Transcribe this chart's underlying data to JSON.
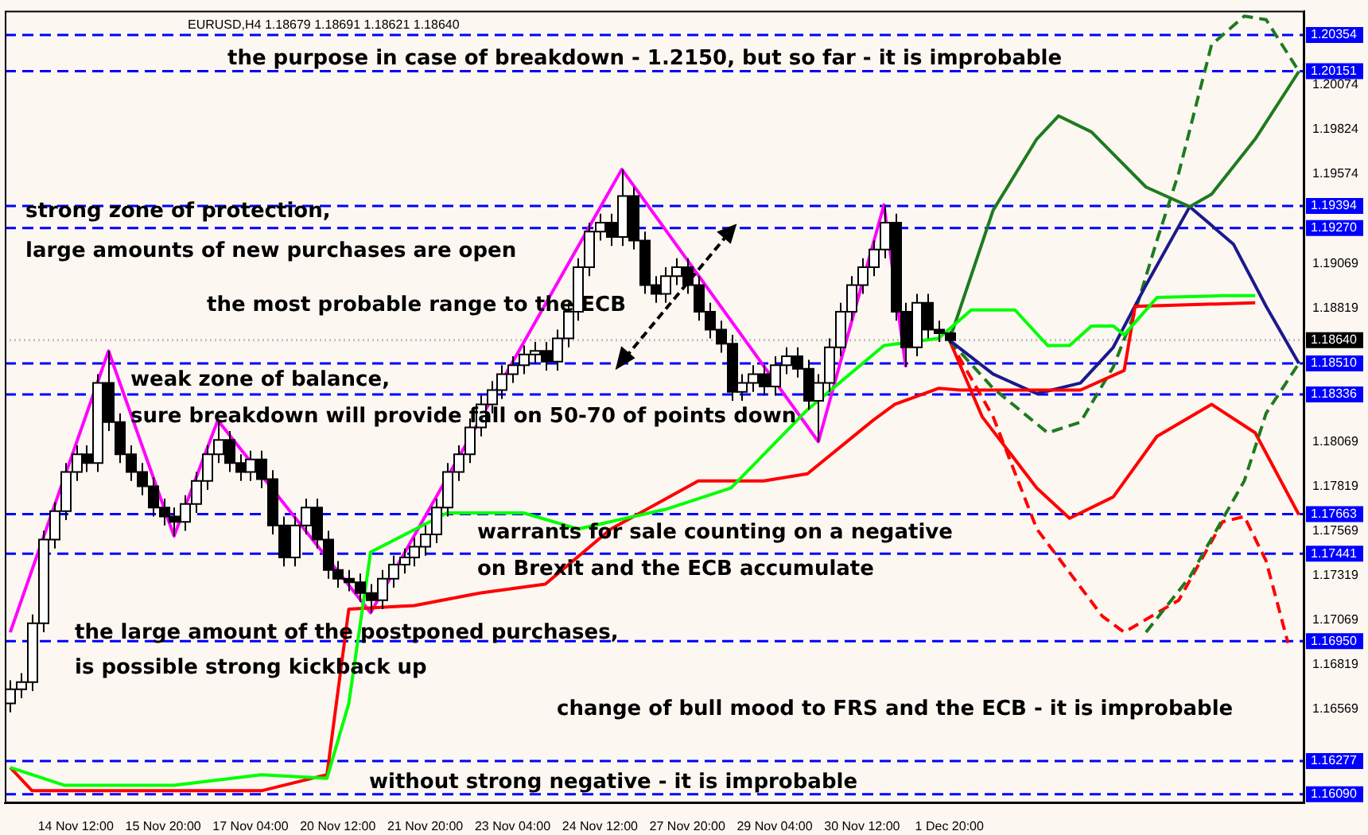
{
  "chart_data": {
    "type": "candlestick",
    "title": "EURUSD,H4 1.18679 1.18691 1.18621 1.18640",
    "categories": [
      null,
      null,
      null,
      null,
      null,
      null,
      "14 Nov 12:00",
      null,
      null,
      null,
      null,
      null,
      null,
      null,
      "15 Nov 20:00",
      null,
      null,
      null,
      null,
      null,
      null,
      null,
      "17 Nov 04:00",
      null,
      null,
      null,
      null,
      null,
      null,
      null,
      "20 Nov 12:00",
      null,
      null,
      null,
      null,
      null,
      null,
      null,
      "21 Nov 20:00",
      null,
      null,
      null,
      null,
      null,
      null,
      null,
      "23 Nov 04:00",
      null,
      null,
      null,
      null,
      null,
      null,
      null,
      "24 Nov 12:00",
      null,
      null,
      null,
      null,
      null,
      null,
      null,
      "27 Nov 20:00",
      null,
      null,
      null,
      null,
      null,
      null,
      null,
      "29 Nov 04:00",
      null,
      null,
      null,
      null,
      null,
      null,
      null,
      "30 Nov 12:00",
      null,
      null,
      null,
      null,
      null,
      null,
      null,
      "1 Dec 20:00",
      null,
      null,
      null,
      null,
      null,
      null,
      null,
      null,
      null,
      null,
      null,
      null,
      null,
      null,
      null,
      null,
      null,
      null,
      null,
      null,
      null,
      null,
      null,
      null,
      null,
      null,
      null,
      null,
      null,
      null,
      null,
      null
    ],
    "ohlc": [
      [
        1.166,
        1.1673,
        1.1655,
        1.1668
      ],
      [
        1.1668,
        1.1677,
        1.1663,
        1.1672
      ],
      [
        1.1672,
        1.171,
        1.1667,
        1.1705
      ],
      [
        1.1705,
        1.1757,
        1.17,
        1.1752
      ],
      [
        1.1752,
        1.1773,
        1.1747,
        1.1768
      ],
      [
        1.1768,
        1.1795,
        1.1763,
        1.179
      ],
      [
        1.179,
        1.1805,
        1.1785,
        1.18
      ],
      [
        1.18,
        1.1805,
        1.179,
        1.1795
      ],
      [
        1.1795,
        1.1845,
        1.179,
        1.184
      ],
      [
        1.184,
        1.1858,
        1.1813,
        1.1818
      ],
      [
        1.1818,
        1.1823,
        1.1795,
        1.18
      ],
      [
        1.18,
        1.1805,
        1.1785,
        1.179
      ],
      [
        1.179,
        1.1795,
        1.1777,
        1.1782
      ],
      [
        1.1782,
        1.1787,
        1.1765,
        1.177
      ],
      [
        1.177,
        1.1775,
        1.176,
        1.1765
      ],
      [
        1.1765,
        1.177,
        1.1754,
        1.1762
      ],
      [
        1.1762,
        1.1777,
        1.1757,
        1.1772
      ],
      [
        1.1772,
        1.179,
        1.1767,
        1.1785
      ],
      [
        1.1785,
        1.1805,
        1.178,
        1.18
      ],
      [
        1.18,
        1.1819,
        1.1795,
        1.1808
      ],
      [
        1.1808,
        1.1813,
        1.179,
        1.1795
      ],
      [
        1.1795,
        1.18,
        1.1785,
        1.179
      ],
      [
        1.179,
        1.1802,
        1.1785,
        1.1797
      ],
      [
        1.1797,
        1.1802,
        1.1781,
        1.1786
      ],
      [
        1.1786,
        1.1791,
        1.1755,
        1.176
      ],
      [
        1.176,
        1.1765,
        1.1737,
        1.1742
      ],
      [
        1.1742,
        1.1765,
        1.1737,
        1.176
      ],
      [
        1.176,
        1.1775,
        1.1755,
        1.177
      ],
      [
        1.177,
        1.1775,
        1.1747,
        1.1752
      ],
      [
        1.1752,
        1.1757,
        1.173,
        1.1735
      ],
      [
        1.1735,
        1.174,
        1.1725,
        1.173
      ],
      [
        1.173,
        1.1735,
        1.1723,
        1.1728
      ],
      [
        1.1728,
        1.1733,
        1.1717,
        1.1722
      ],
      [
        1.1722,
        1.1727,
        1.1711,
        1.1718
      ],
      [
        1.1718,
        1.1735,
        1.1713,
        1.173
      ],
      [
        1.173,
        1.1743,
        1.1725,
        1.1738
      ],
      [
        1.1738,
        1.1747,
        1.1733,
        1.1742
      ],
      [
        1.1742,
        1.1753,
        1.1737,
        1.1748
      ],
      [
        1.1748,
        1.176,
        1.1743,
        1.1755
      ],
      [
        1.1755,
        1.1775,
        1.175,
        1.177
      ],
      [
        1.177,
        1.1795,
        1.1765,
        1.179
      ],
      [
        1.179,
        1.1805,
        1.1785,
        1.18
      ],
      [
        1.18,
        1.182,
        1.1795,
        1.1815
      ],
      [
        1.1815,
        1.1833,
        1.181,
        1.1828
      ],
      [
        1.1828,
        1.1841,
        1.1823,
        1.1836
      ],
      [
        1.1836,
        1.185,
        1.1831,
        1.1845
      ],
      [
        1.1845,
        1.1855,
        1.184,
        1.185
      ],
      [
        1.185,
        1.1861,
        1.1845,
        1.1856
      ],
      [
        1.1856,
        1.1863,
        1.1851,
        1.1858
      ],
      [
        1.1858,
        1.1863,
        1.1847,
        1.1852
      ],
      [
        1.1852,
        1.187,
        1.1847,
        1.1865
      ],
      [
        1.1865,
        1.1885,
        1.186,
        1.188
      ],
      [
        1.188,
        1.191,
        1.1875,
        1.1905
      ],
      [
        1.1905,
        1.193,
        1.19,
        1.1925
      ],
      [
        1.1925,
        1.1935,
        1.192,
        1.193
      ],
      [
        1.193,
        1.1935,
        1.1917,
        1.1922
      ],
      [
        1.1922,
        1.196,
        1.1917,
        1.1945
      ],
      [
        1.1945,
        1.195,
        1.1915,
        1.192
      ],
      [
        1.192,
        1.1925,
        1.189,
        1.1895
      ],
      [
        1.1895,
        1.19,
        1.1885,
        1.189
      ],
      [
        1.189,
        1.1905,
        1.1885,
        1.19
      ],
      [
        1.19,
        1.191,
        1.1895,
        1.1905
      ],
      [
        1.1905,
        1.191,
        1.189,
        1.1895
      ],
      [
        1.1895,
        1.19,
        1.1875,
        1.188
      ],
      [
        1.188,
        1.1885,
        1.1865,
        1.187
      ],
      [
        1.187,
        1.1875,
        1.1857,
        1.1862
      ],
      [
        1.1862,
        1.1867,
        1.183,
        1.1835
      ],
      [
        1.1835,
        1.1845,
        1.183,
        1.184
      ],
      [
        1.184,
        1.185,
        1.1835,
        1.1845
      ],
      [
        1.1845,
        1.185,
        1.1833,
        1.1838
      ],
      [
        1.1838,
        1.1855,
        1.1833,
        1.185
      ],
      [
        1.185,
        1.186,
        1.1845,
        1.1855
      ],
      [
        1.1855,
        1.186,
        1.1843,
        1.1848
      ],
      [
        1.1848,
        1.1853,
        1.1825,
        1.183
      ],
      [
        1.183,
        1.1845,
        1.1807,
        1.184
      ],
      [
        1.184,
        1.1865,
        1.1835,
        1.186
      ],
      [
        1.186,
        1.1885,
        1.1855,
        1.188
      ],
      [
        1.188,
        1.19,
        1.1875,
        1.1895
      ],
      [
        1.1895,
        1.191,
        1.189,
        1.1905
      ],
      [
        1.1905,
        1.192,
        1.19,
        1.1915
      ],
      [
        1.1915,
        1.194,
        1.191,
        1.193
      ],
      [
        1.193,
        1.1935,
        1.1875,
        1.188
      ],
      [
        1.188,
        1.1885,
        1.1849,
        1.186
      ],
      [
        1.186,
        1.189,
        1.1855,
        1.1885
      ],
      [
        1.1885,
        1.189,
        1.1865,
        1.187
      ],
      [
        1.187,
        1.1875,
        1.1863,
        1.1868
      ],
      [
        1.18679,
        1.18691,
        1.18621,
        1.1864
      ],
      null,
      null,
      null,
      null,
      null,
      null,
      null,
      null,
      null,
      null,
      null,
      null,
      null,
      null,
      null,
      null,
      null,
      null,
      null,
      null,
      null,
      null,
      null,
      null,
      null,
      null,
      null,
      null,
      null,
      null,
      null,
      null
    ],
    "series": [
      {
        "type": "line",
        "color": "#00ff00",
        "values": [
          1.1624,
          null,
          null,
          null,
          null,
          1.1614,
          null,
          null,
          null,
          null,
          null,
          null,
          null,
          null,
          null,
          1.1614,
          null,
          null,
          null,
          null,
          null,
          null,
          null,
          1.162,
          null,
          null,
          null,
          null,
          null,
          1.1618,
          null,
          1.166,
          null,
          1.1745,
          null,
          null,
          null,
          null,
          null,
          null,
          1.1767,
          null,
          null,
          null,
          null,
          null,
          null,
          1.1767,
          null,
          null,
          null,
          null,
          1.1758,
          null,
          null,
          null,
          null,
          null,
          null,
          null,
          1.1769,
          null,
          null,
          null,
          null,
          null,
          1.1781,
          null,
          null,
          null,
          null,
          null,
          null,
          1.1825,
          null,
          null,
          null,
          null,
          null,
          null,
          1.1861,
          null,
          null,
          null,
          null,
          1.1865,
          null,
          null,
          1.1881,
          null,
          null,
          null,
          1.1881,
          null,
          null,
          1.1861,
          null,
          1.1861,
          null,
          1.1872,
          null,
          1.1872,
          1.1867,
          null,
          null,
          1.1888,
          null,
          null,
          null,
          null,
          null,
          1.1889,
          null,
          null,
          1.1889,
          null,
          null,
          null,
          null
        ]
      },
      {
        "type": "line",
        "color": "#ff0000",
        "values": [
          1.1624,
          null,
          1.1611,
          null,
          null,
          null,
          null,
          null,
          null,
          null,
          null,
          null,
          null,
          null,
          null,
          null,
          null,
          null,
          null,
          null,
          null,
          null,
          null,
          1.1611,
          null,
          null,
          null,
          null,
          null,
          1.162,
          null,
          1.1713,
          null,
          null,
          null,
          null,
          null,
          1.1715,
          null,
          null,
          null,
          null,
          null,
          1.1722,
          null,
          null,
          null,
          null,
          null,
          1.1727,
          null,
          null,
          null,
          null,
          null,
          1.1758,
          null,
          null,
          null,
          null,
          null,
          null,
          null,
          1.1785,
          null,
          null,
          null,
          null,
          null,
          1.1785,
          null,
          null,
          null,
          1.1789,
          null,
          null,
          null,
          null,
          null,
          1.1819,
          null,
          1.1828,
          null,
          null,
          null,
          1.1837,
          null,
          1.1836,
          null,
          null,
          null,
          null,
          null,
          null,
          null,
          null,
          null,
          null,
          1.1836,
          null,
          null,
          null,
          1.1847,
          1.1883,
          null,
          null,
          null,
          null,
          null,
          null,
          null,
          null,
          null,
          null,
          1.1885,
          null,
          null,
          null,
          null
        ]
      },
      {
        "type": "line",
        "color": "#ff00ff",
        "values": [
          1.17,
          null,
          null,
          null,
          null,
          null,
          null,
          null,
          null,
          1.1858,
          null,
          null,
          null,
          null,
          null,
          1.1754,
          null,
          null,
          null,
          1.1819,
          null,
          null,
          null,
          null,
          null,
          null,
          null,
          null,
          null,
          null,
          null,
          null,
          null,
          1.1711,
          null,
          null,
          null,
          null,
          null,
          null,
          null,
          null,
          null,
          null,
          null,
          null,
          null,
          null,
          null,
          null,
          null,
          null,
          null,
          null,
          null,
          null,
          1.196,
          null,
          null,
          null,
          null,
          null,
          null,
          null,
          null,
          null,
          null,
          null,
          null,
          null,
          null,
          null,
          null,
          null,
          1.1807,
          null,
          null,
          null,
          null,
          null,
          1.194,
          null,
          1.1849,
          null,
          null,
          null,
          null,
          null,
          null,
          null,
          null,
          null,
          null,
          null,
          null,
          null,
          null,
          null,
          null,
          null,
          null,
          null,
          null,
          null,
          null,
          null,
          null,
          null,
          null,
          null,
          null,
          null,
          null,
          null,
          null,
          null,
          null,
          null,
          null
        ]
      },
      {
        "type": "line",
        "color": "#1e7b1e",
        "line_style": "solid",
        "values": [
          null,
          null,
          null,
          null,
          null,
          null,
          null,
          null,
          null,
          null,
          null,
          null,
          null,
          null,
          null,
          null,
          null,
          null,
          null,
          null,
          null,
          null,
          null,
          null,
          null,
          null,
          null,
          null,
          null,
          null,
          null,
          null,
          null,
          null,
          null,
          null,
          null,
          null,
          null,
          null,
          null,
          null,
          null,
          null,
          null,
          null,
          null,
          null,
          null,
          null,
          null,
          null,
          null,
          null,
          null,
          null,
          null,
          null,
          null,
          null,
          null,
          null,
          null,
          null,
          null,
          null,
          null,
          null,
          null,
          null,
          null,
          null,
          null,
          null,
          null,
          null,
          null,
          null,
          null,
          null,
          null,
          null,
          null,
          null,
          null,
          null,
          1.1864,
          null,
          null,
          null,
          1.1937,
          null,
          null,
          null,
          1.1977,
          null,
          1.199,
          null,
          null,
          1.1981,
          null,
          null,
          null,
          null,
          1.195,
          null,
          null,
          null,
          1.1939,
          null,
          1.1946,
          null,
          null,
          null,
          1.1977,
          null,
          null,
          null,
          1.2015
        ]
      },
      {
        "type": "line",
        "color": "#1a1a8c",
        "line_style": "solid",
        "values": [
          null,
          null,
          null,
          null,
          null,
          null,
          null,
          null,
          null,
          null,
          null,
          null,
          null,
          null,
          null,
          null,
          null,
          null,
          null,
          null,
          null,
          null,
          null,
          null,
          null,
          null,
          null,
          null,
          null,
          null,
          null,
          null,
          null,
          null,
          null,
          null,
          null,
          null,
          null,
          null,
          null,
          null,
          null,
          null,
          null,
          null,
          null,
          null,
          null,
          null,
          null,
          null,
          null,
          null,
          null,
          null,
          null,
          null,
          null,
          null,
          null,
          null,
          null,
          null,
          null,
          null,
          null,
          null,
          null,
          null,
          null,
          null,
          null,
          null,
          null,
          null,
          null,
          null,
          null,
          null,
          null,
          null,
          null,
          null,
          null,
          null,
          1.1864,
          null,
          null,
          null,
          1.1845,
          null,
          null,
          null,
          1.1834,
          null,
          null,
          null,
          1.184,
          null,
          null,
          1.186,
          null,
          null,
          1.1895,
          null,
          null,
          null,
          1.1939,
          null,
          null,
          null,
          1.1918,
          null,
          null,
          1.1883,
          null,
          null,
          1.1851
        ]
      },
      {
        "type": "line",
        "color": "#1e7b1e",
        "line_style": "dashed",
        "values": [
          null,
          null,
          null,
          null,
          null,
          null,
          null,
          null,
          null,
          null,
          null,
          null,
          null,
          null,
          null,
          null,
          null,
          null,
          null,
          null,
          null,
          null,
          null,
          null,
          null,
          null,
          null,
          null,
          null,
          null,
          null,
          null,
          null,
          null,
          null,
          null,
          null,
          null,
          null,
          null,
          null,
          null,
          null,
          null,
          null,
          null,
          null,
          null,
          null,
          null,
          null,
          null,
          null,
          null,
          null,
          null,
          null,
          null,
          null,
          null,
          null,
          null,
          null,
          null,
          null,
          null,
          null,
          null,
          null,
          null,
          null,
          null,
          null,
          null,
          null,
          null,
          null,
          null,
          null,
          null,
          null,
          null,
          null,
          null,
          null,
          null,
          1.1864,
          null,
          null,
          null,
          1.1837,
          null,
          null,
          null,
          null,
          1.1812,
          null,
          null,
          1.1818,
          null,
          null,
          1.1849,
          null,
          1.188,
          null,
          1.192,
          null,
          1.1958,
          null,
          null,
          1.203,
          null,
          null,
          1.2046,
          null,
          1.2044,
          null,
          null,
          1.2015
        ]
      },
      {
        "type": "line",
        "color": "#1e7b1e",
        "line_style": "dashed",
        "values": [
          null,
          null,
          null,
          null,
          null,
          null,
          null,
          null,
          null,
          null,
          null,
          null,
          null,
          null,
          null,
          null,
          null,
          null,
          null,
          null,
          null,
          null,
          null,
          null,
          null,
          null,
          null,
          null,
          null,
          null,
          null,
          null,
          null,
          null,
          null,
          null,
          null,
          null,
          null,
          null,
          null,
          null,
          null,
          null,
          null,
          null,
          null,
          null,
          null,
          null,
          null,
          null,
          null,
          null,
          null,
          null,
          null,
          null,
          null,
          null,
          null,
          null,
          null,
          null,
          null,
          null,
          null,
          null,
          null,
          null,
          null,
          null,
          null,
          null,
          null,
          null,
          null,
          null,
          null,
          null,
          null,
          null,
          null,
          null,
          null,
          null,
          null,
          null,
          null,
          null,
          null,
          null,
          null,
          null,
          null,
          null,
          null,
          null,
          null,
          null,
          null,
          null,
          null,
          null,
          1.17,
          null,
          null,
          null,
          1.1731,
          null,
          null,
          null,
          null,
          1.1785,
          null,
          1.1823,
          null,
          null,
          1.1851
        ]
      },
      {
        "type": "line",
        "color": "#ff0000",
        "line_style": "solid",
        "values": [
          null,
          null,
          null,
          null,
          null,
          null,
          null,
          null,
          null,
          null,
          null,
          null,
          null,
          null,
          null,
          null,
          null,
          null,
          null,
          null,
          null,
          null,
          null,
          null,
          null,
          null,
          null,
          null,
          null,
          null,
          null,
          null,
          null,
          null,
          null,
          null,
          null,
          null,
          null,
          null,
          null,
          null,
          null,
          null,
          null,
          null,
          null,
          null,
          null,
          null,
          null,
          null,
          null,
          null,
          null,
          null,
          null,
          null,
          null,
          null,
          null,
          null,
          null,
          null,
          null,
          null,
          null,
          null,
          null,
          null,
          null,
          null,
          null,
          null,
          null,
          null,
          null,
          null,
          null,
          null,
          null,
          null,
          null,
          null,
          null,
          null,
          1.1864,
          null,
          null,
          1.1821,
          null,
          null,
          null,
          null,
          1.1781,
          null,
          null,
          1.1764,
          null,
          null,
          null,
          1.1776,
          null,
          null,
          null,
          1.181,
          null,
          null,
          null,
          null,
          1.1828,
          null,
          null,
          null,
          1.1812,
          null,
          null,
          null,
          1.1766
        ]
      },
      {
        "type": "line",
        "color": "#ff0000",
        "line_style": "dashed",
        "values": [
          null,
          null,
          null,
          null,
          null,
          null,
          null,
          null,
          null,
          null,
          null,
          null,
          null,
          null,
          null,
          null,
          null,
          null,
          null,
          null,
          null,
          null,
          null,
          null,
          null,
          null,
          null,
          null,
          null,
          null,
          null,
          null,
          null,
          null,
          null,
          null,
          null,
          null,
          null,
          null,
          null,
          null,
          null,
          null,
          null,
          null,
          null,
          null,
          null,
          null,
          null,
          null,
          null,
          null,
          null,
          null,
          null,
          null,
          null,
          null,
          null,
          null,
          null,
          null,
          null,
          null,
          null,
          null,
          null,
          null,
          null,
          null,
          null,
          null,
          null,
          null,
          null,
          null,
          null,
          null,
          null,
          null,
          null,
          null,
          null,
          null,
          1.1864,
          null,
          null,
          null,
          1.1821,
          null,
          null,
          null,
          1.1758,
          null,
          null,
          null,
          null,
          null,
          1.1709,
          null,
          1.17,
          null,
          null,
          null,
          null,
          1.1718,
          null,
          null,
          null,
          1.1762,
          null,
          1.1765,
          null,
          1.174,
          null,
          1.1694,
          null
        ]
      }
    ],
    "ylim": [
      1.1604,
      1.2049
    ],
    "yticks": [
      1.16569,
      1.16819,
      1.17069,
      1.17319,
      1.17569,
      1.17819,
      1.18069,
      1.18819,
      1.19069,
      1.19574,
      1.19824,
      1.20074
    ],
    "ref_lines": [
      {
        "axis": "y",
        "value": 1.20354,
        "label": "1.20354",
        "color": "#0000ff",
        "line_style": "dashed"
      },
      {
        "axis": "y",
        "value": 1.20151,
        "label": "1.20151",
        "color": "#0000ff",
        "line_style": "dashed"
      },
      {
        "axis": "y",
        "value": 1.19394,
        "label": "1.19394",
        "color": "#0000ff",
        "line_style": "dashed"
      },
      {
        "axis": "y",
        "value": 1.1927,
        "label": "1.19270",
        "color": "#0000ff",
        "line_style": "dashed"
      },
      {
        "axis": "y",
        "value": 1.1864,
        "label": "1.18640",
        "color": "#c0c0c0",
        "line_style": "dotted"
      },
      {
        "axis": "y",
        "value": 1.1851,
        "label": "1.18510",
        "color": "#0000ff",
        "line_style": "dashed"
      },
      {
        "axis": "y",
        "value": 1.18336,
        "label": "1.18336",
        "color": "#0000ff",
        "line_style": "dashed"
      },
      {
        "axis": "y",
        "value": 1.17663,
        "label": "1.17663",
        "color": "#0000ff",
        "line_style": "dashed"
      },
      {
        "axis": "y",
        "value": 1.17441,
        "label": "1.17441",
        "color": "#0000ff",
        "line_style": "dashed"
      },
      {
        "axis": "y",
        "value": 1.1695,
        "label": "1.16950",
        "color": "#0000ff",
        "line_style": "dashed"
      },
      {
        "axis": "y",
        "value": 1.16277,
        "label": "1.16277",
        "color": "#0000ff",
        "line_style": "dashed"
      },
      {
        "axis": "y",
        "value": 1.1609,
        "label": "1.16090",
        "color": "#0000ff",
        "line_style": "dashed"
      }
    ],
    "annotations": [
      "the purpose in case of breakdown - 1.2150, but so far - it is improbable",
      "strong zone of protection,",
      "large amounts of new purchases are open",
      "the most probable range to the ECB",
      "weak zone of balance,",
      "sure breakdown will provide fall on 50-70 of points down",
      "warrants for sale counting on a negative",
      "on Brexit and the ECB accumulate",
      "the large amount of the postponed purchases,",
      "is possible strong kickback up",
      "change of bull mood to FRS and the ECB - it is improbable",
      "without strong negative - it is improbable"
    ],
    "legend": false,
    "grid": false
  }
}
